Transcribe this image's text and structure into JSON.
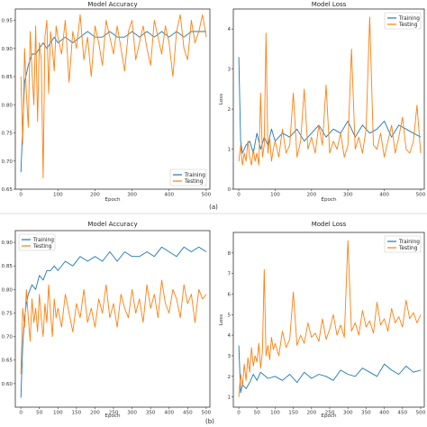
{
  "colors": {
    "training": "#1f77b4",
    "testing": "#ff7f0e"
  },
  "panel_labels": [
    "(a)",
    "(b)"
  ],
  "chart_data": [
    {
      "type": "line",
      "panel": "(a)",
      "title": "Model Accuracy",
      "xlabel": "Epoch",
      "ylabel": "",
      "xlim": [
        -15,
        510
      ],
      "ylim": [
        0.65,
        0.97
      ],
      "xticks": [
        0,
        100,
        200,
        300,
        400,
        500
      ],
      "yticks": [
        0.65,
        0.7,
        0.75,
        0.8,
        0.85,
        0.9,
        0.95
      ],
      "ytick_labels": [
        "0.65",
        "0.70",
        "0.75",
        "0.80",
        "0.85",
        "0.90",
        "0.95"
      ],
      "legend": "bottom-right",
      "series": [
        {
          "name": "Training",
          "color": "#1f77b4",
          "x": [
            0,
            10,
            20,
            30,
            40,
            50,
            60,
            70,
            80,
            90,
            100,
            120,
            140,
            160,
            180,
            200,
            220,
            240,
            260,
            280,
            300,
            320,
            340,
            360,
            380,
            400,
            420,
            440,
            460,
            480,
            500
          ],
          "values": [
            0.68,
            0.84,
            0.87,
            0.89,
            0.89,
            0.9,
            0.91,
            0.9,
            0.91,
            0.92,
            0.91,
            0.92,
            0.91,
            0.92,
            0.93,
            0.92,
            0.92,
            0.93,
            0.92,
            0.92,
            0.93,
            0.92,
            0.93,
            0.92,
            0.93,
            0.92,
            0.93,
            0.92,
            0.93,
            0.93,
            0.93
          ]
        },
        {
          "name": "Testing",
          "color": "#ff7f0e",
          "x": [
            0,
            5,
            10,
            15,
            20,
            25,
            30,
            35,
            40,
            45,
            50,
            55,
            60,
            65,
            70,
            75,
            80,
            85,
            90,
            95,
            100,
            110,
            120,
            130,
            140,
            150,
            160,
            170,
            180,
            190,
            200,
            210,
            220,
            230,
            240,
            250,
            260,
            270,
            280,
            290,
            300,
            310,
            320,
            330,
            340,
            350,
            360,
            370,
            380,
            390,
            400,
            410,
            420,
            430,
            440,
            450,
            460,
            470,
            480,
            490,
            500
          ],
          "values": [
            0.85,
            0.73,
            0.9,
            0.82,
            0.76,
            0.93,
            0.86,
            0.8,
            0.94,
            0.77,
            0.91,
            0.88,
            0.67,
            0.92,
            0.95,
            0.82,
            0.93,
            0.9,
            0.86,
            0.94,
            0.92,
            0.89,
            0.95,
            0.84,
            0.93,
            0.9,
            0.96,
            0.88,
            0.92,
            0.85,
            0.94,
            0.91,
            0.87,
            0.95,
            0.92,
            0.89,
            0.94,
            0.9,
            0.86,
            0.93,
            0.95,
            0.88,
            0.91,
            0.94,
            0.9,
            0.87,
            0.95,
            0.92,
            0.89,
            0.94,
            0.91,
            0.85,
            0.93,
            0.96,
            0.9,
            0.88,
            0.95,
            0.91,
            0.93,
            0.96,
            0.92
          ]
        }
      ]
    },
    {
      "type": "line",
      "panel": "(a)",
      "title": "Model Loss",
      "xlabel": "Epoch",
      "ylabel": "Loss",
      "xlim": [
        -15,
        510
      ],
      "ylim": [
        0.0,
        4.5
      ],
      "xticks": [
        0,
        100,
        200,
        300,
        400,
        500
      ],
      "yticks": [
        0,
        1,
        2,
        3,
        4
      ],
      "ytick_labels": [
        "0",
        "1",
        "2",
        "3",
        "4"
      ],
      "legend": "top-right",
      "series": [
        {
          "name": "Training",
          "color": "#1f77b4",
          "x": [
            0,
            5,
            10,
            20,
            30,
            40,
            50,
            60,
            70,
            80,
            90,
            100,
            120,
            140,
            160,
            180,
            200,
            220,
            240,
            260,
            280,
            300,
            320,
            340,
            360,
            380,
            400,
            420,
            440,
            460,
            480,
            500
          ],
          "values": [
            3.3,
            1.2,
            0.9,
            1.1,
            1.2,
            0.9,
            1.4,
            1.0,
            1.3,
            1.1,
            1.5,
            1.2,
            1.4,
            1.3,
            1.5,
            1.2,
            1.4,
            1.6,
            1.3,
            1.5,
            1.4,
            1.7,
            1.3,
            1.6,
            1.4,
            1.5,
            1.7,
            1.3,
            1.6,
            1.5,
            1.4,
            1.3
          ]
        },
        {
          "name": "Testing",
          "color": "#ff7f0e",
          "x": [
            0,
            5,
            10,
            15,
            20,
            25,
            30,
            35,
            40,
            45,
            50,
            55,
            60,
            65,
            70,
            75,
            80,
            85,
            90,
            95,
            100,
            110,
            120,
            130,
            140,
            150,
            160,
            170,
            180,
            190,
            200,
            210,
            220,
            230,
            240,
            250,
            260,
            270,
            280,
            290,
            300,
            310,
            320,
            330,
            340,
            350,
            360,
            370,
            380,
            390,
            400,
            410,
            420,
            430,
            440,
            450,
            460,
            470,
            480,
            490,
            500
          ],
          "values": [
            0.7,
            1.1,
            0.6,
            0.9,
            0.7,
            1.2,
            0.8,
            0.6,
            1.0,
            0.7,
            0.9,
            0.6,
            2.4,
            0.8,
            1.1,
            3.9,
            0.9,
            1.3,
            0.7,
            1.0,
            1.2,
            0.8,
            1.5,
            0.9,
            1.1,
            2.4,
            0.8,
            1.2,
            2.5,
            1.0,
            1.3,
            0.9,
            1.6,
            1.1,
            2.6,
            0.9,
            1.2,
            1.0,
            1.4,
            0.8,
            1.1,
            3.5,
            1.0,
            1.3,
            0.9,
            1.5,
            4.3,
            1.1,
            1.0,
            1.4,
            0.8,
            1.2,
            1.6,
            0.9,
            1.3,
            1.8,
            1.0,
            0.9,
            1.2,
            2.1,
            0.9
          ]
        }
      ]
    },
    {
      "type": "line",
      "panel": "(b)",
      "title": "Model Accuracy",
      "xlabel": "Epoch",
      "ylabel": "",
      "xlim": [
        -15,
        510
      ],
      "ylim": [
        0.55,
        0.925
      ],
      "xticks": [
        0,
        50,
        100,
        150,
        200,
        250,
        300,
        350,
        400,
        450,
        500
      ],
      "yticks": [
        0.6,
        0.65,
        0.7,
        0.75,
        0.8,
        0.85,
        0.9
      ],
      "ytick_labels": [
        "0.60",
        "0.65",
        "0.70",
        "0.75",
        "0.80",
        "0.85",
        "0.90"
      ],
      "legend": "top-left",
      "series": [
        {
          "name": "Training",
          "color": "#1f77b4",
          "x": [
            0,
            5,
            10,
            15,
            20,
            30,
            40,
            50,
            60,
            70,
            80,
            90,
            100,
            120,
            140,
            160,
            180,
            200,
            220,
            240,
            260,
            280,
            300,
            320,
            340,
            360,
            380,
            400,
            420,
            440,
            460,
            480,
            500
          ],
          "values": [
            0.57,
            0.68,
            0.74,
            0.77,
            0.79,
            0.81,
            0.8,
            0.83,
            0.82,
            0.84,
            0.84,
            0.85,
            0.84,
            0.86,
            0.85,
            0.87,
            0.86,
            0.87,
            0.86,
            0.88,
            0.86,
            0.88,
            0.87,
            0.87,
            0.88,
            0.87,
            0.89,
            0.88,
            0.87,
            0.89,
            0.88,
            0.89,
            0.88
          ]
        },
        {
          "name": "Testing",
          "color": "#ff7f0e",
          "x": [
            0,
            5,
            10,
            15,
            20,
            25,
            30,
            35,
            40,
            45,
            50,
            55,
            60,
            65,
            70,
            75,
            80,
            85,
            90,
            95,
            100,
            110,
            120,
            130,
            140,
            150,
            160,
            170,
            180,
            190,
            200,
            210,
            220,
            230,
            240,
            250,
            260,
            270,
            280,
            290,
            300,
            310,
            320,
            330,
            340,
            350,
            360,
            370,
            380,
            390,
            400,
            410,
            420,
            430,
            440,
            450,
            460,
            470,
            480,
            490,
            500
          ],
          "values": [
            0.62,
            0.76,
            0.72,
            0.8,
            0.74,
            0.69,
            0.78,
            0.73,
            0.76,
            0.71,
            0.79,
            0.74,
            0.7,
            0.77,
            0.73,
            0.81,
            0.75,
            0.7,
            0.78,
            0.74,
            0.76,
            0.72,
            0.79,
            0.75,
            0.71,
            0.77,
            0.74,
            0.8,
            0.73,
            0.76,
            0.72,
            0.78,
            0.75,
            0.81,
            0.74,
            0.77,
            0.72,
            0.79,
            0.76,
            0.74,
            0.8,
            0.75,
            0.78,
            0.73,
            0.81,
            0.76,
            0.79,
            0.74,
            0.82,
            0.77,
            0.75,
            0.8,
            0.78,
            0.74,
            0.81,
            0.77,
            0.79,
            0.73,
            0.8,
            0.78,
            0.79
          ]
        }
      ]
    },
    {
      "type": "line",
      "panel": "(b)",
      "title": "Model Loss",
      "xlabel": "Epoch",
      "ylabel": "Loss",
      "xlim": [
        -15,
        510
      ],
      "ylim": [
        0.5,
        9.0
      ],
      "xticks": [
        0,
        50,
        100,
        150,
        200,
        250,
        300,
        350,
        400,
        450,
        500
      ],
      "yticks": [
        1,
        2,
        3,
        4,
        5,
        6,
        7,
        8
      ],
      "ytick_labels": [
        "1",
        "2",
        "3",
        "4",
        "5",
        "6",
        "7",
        "8"
      ],
      "legend": "top-right",
      "series": [
        {
          "name": "Training",
          "color": "#1f77b4",
          "x": [
            0,
            5,
            10,
            20,
            30,
            40,
            50,
            60,
            80,
            100,
            120,
            140,
            160,
            180,
            200,
            220,
            240,
            260,
            280,
            300,
            320,
            340,
            360,
            380,
            400,
            420,
            440,
            460,
            480,
            500
          ],
          "values": [
            3.5,
            1.2,
            1.6,
            1.4,
            1.7,
            2.1,
            1.8,
            2.2,
            1.9,
            2.0,
            1.8,
            2.1,
            1.7,
            2.2,
            1.9,
            2.1,
            2.0,
            1.8,
            2.3,
            2.1,
            2.0,
            2.4,
            2.2,
            2.0,
            2.6,
            2.3,
            2.1,
            2.5,
            2.2,
            2.3
          ]
        },
        {
          "name": "Testing",
          "color": "#ff7f0e",
          "x": [
            0,
            5,
            10,
            15,
            20,
            25,
            30,
            35,
            40,
            45,
            50,
            55,
            60,
            65,
            70,
            75,
            80,
            85,
            90,
            95,
            100,
            110,
            120,
            130,
            140,
            150,
            160,
            170,
            180,
            190,
            200,
            210,
            220,
            230,
            240,
            250,
            260,
            270,
            280,
            290,
            300,
            310,
            320,
            330,
            340,
            350,
            360,
            370,
            380,
            390,
            400,
            410,
            420,
            430,
            440,
            450,
            460,
            470,
            480,
            490,
            500
          ],
          "values": [
            1.0,
            2.1,
            1.5,
            2.6,
            1.8,
            2.9,
            2.2,
            3.4,
            2.5,
            3.0,
            2.7,
            3.6,
            2.4,
            3.2,
            7.2,
            3.0,
            3.5,
            2.8,
            3.9,
            3.3,
            3.6,
            3.0,
            4.2,
            3.4,
            3.8,
            6.1,
            3.5,
            4.0,
            3.6,
            4.6,
            3.9,
            4.1,
            3.7,
            4.8,
            3.8,
            4.3,
            5.0,
            4.0,
            4.5,
            3.9,
            8.6,
            4.2,
            4.6,
            4.0,
            5.2,
            4.4,
            4.7,
            4.1,
            5.6,
            4.5,
            4.8,
            4.2,
            5.3,
            4.6,
            4.9,
            4.4,
            5.7,
            4.8,
            5.1,
            4.6,
            5.0
          ]
        }
      ]
    }
  ]
}
